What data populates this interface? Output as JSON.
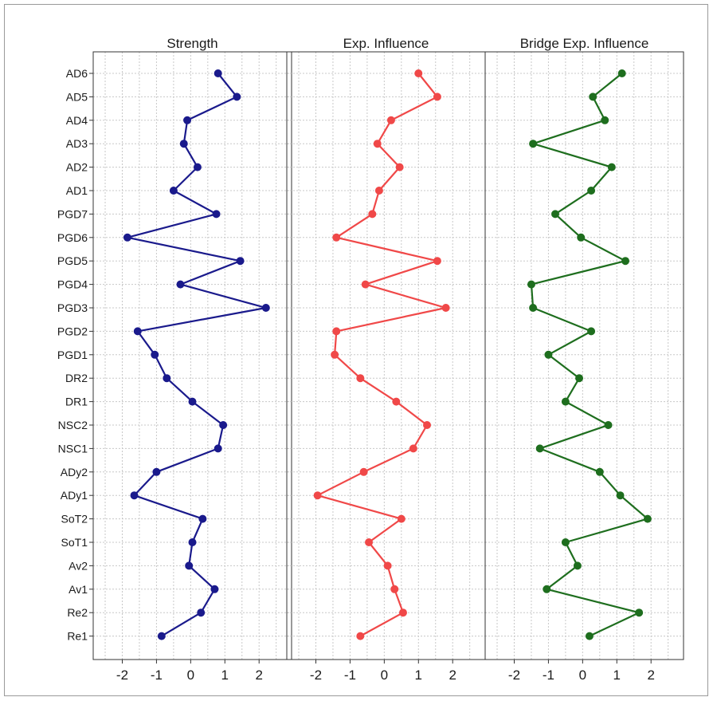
{
  "chart_data": {
    "type": "line",
    "categories": [
      "AD6",
      "AD5",
      "AD4",
      "AD3",
      "AD2",
      "AD1",
      "PGD7",
      "PGD6",
      "PGD5",
      "PGD4",
      "PGD3",
      "PGD2",
      "PGD1",
      "DR2",
      "DR1",
      "NSC2",
      "NSC1",
      "ADy2",
      "ADy1",
      "SoT2",
      "SoT1",
      "Av2",
      "Av1",
      "Re2",
      "Re1"
    ],
    "xticks": [
      -2,
      -1,
      0,
      1,
      2
    ],
    "xlim": [
      -2.85,
      2.95
    ],
    "grid": true,
    "panels": [
      {
        "title": "Strength",
        "color": "#1a1a8c",
        "values": [
          0.8,
          1.35,
          -0.1,
          -0.2,
          0.2,
          -0.5,
          0.75,
          -1.85,
          1.45,
          -0.3,
          2.2,
          -1.55,
          -1.05,
          -0.7,
          0.05,
          0.95,
          0.8,
          -1.0,
          -1.65,
          0.35,
          0.05,
          -0.05,
          0.7,
          0.3,
          -0.85
        ]
      },
      {
        "title": "Exp. Influence",
        "color": "#f04848",
        "values": [
          1.0,
          1.55,
          0.2,
          -0.2,
          0.45,
          -0.15,
          -0.35,
          -1.4,
          1.55,
          -0.55,
          1.8,
          -1.4,
          -1.45,
          -0.7,
          0.35,
          1.25,
          0.85,
          -0.6,
          -1.95,
          0.5,
          -0.45,
          0.1,
          0.3,
          0.55,
          -0.7
        ]
      },
      {
        "title": "Bridge Exp. Influence",
        "color": "#1e6e1e",
        "values": [
          1.15,
          0.3,
          0.65,
          -1.45,
          0.85,
          0.25,
          -0.8,
          -0.05,
          1.25,
          -1.5,
          -1.45,
          0.25,
          -1.0,
          -0.1,
          -0.5,
          0.75,
          -1.25,
          0.5,
          1.1,
          1.9,
          -0.5,
          -0.15,
          -1.05,
          1.65,
          0.2
        ]
      }
    ]
  }
}
